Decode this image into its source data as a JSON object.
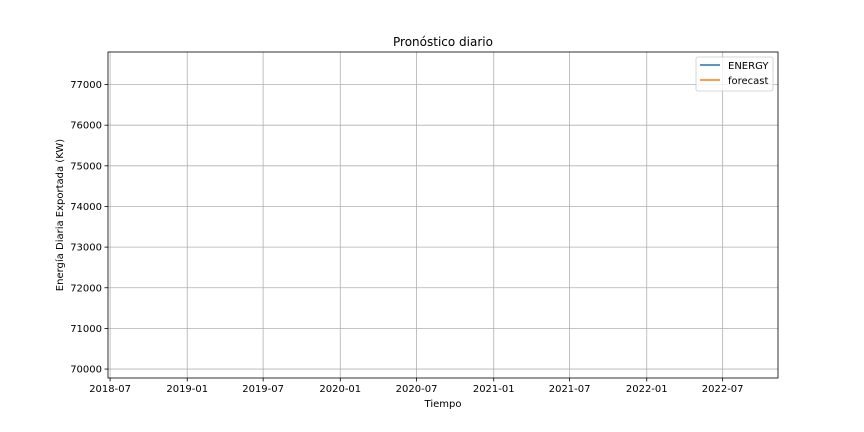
{
  "chart_data": {
    "type": "line",
    "title": "Pronóstico diario",
    "xlabel": "Tiempo",
    "ylabel": "Energía Diaria Exportada (KW)",
    "x_axis": {
      "type": "date",
      "range": [
        "2018-06-26",
        "2022-11-10"
      ],
      "ticks": [
        "2018-07",
        "2019-01",
        "2019-07",
        "2020-01",
        "2020-07",
        "2021-01",
        "2021-07",
        "2022-01",
        "2022-07"
      ]
    },
    "y_axis": {
      "range": [
        69780,
        77800
      ],
      "ticks": [
        70000,
        71000,
        72000,
        73000,
        74000,
        75000,
        76000,
        77000
      ]
    },
    "grid": true,
    "legend_position": "top-right",
    "series": [
      {
        "name": "ENERGY",
        "color": "#1f77b4",
        "points": []
      },
      {
        "name": "forecast",
        "color": "#ff7f0e",
        "points": []
      }
    ]
  }
}
